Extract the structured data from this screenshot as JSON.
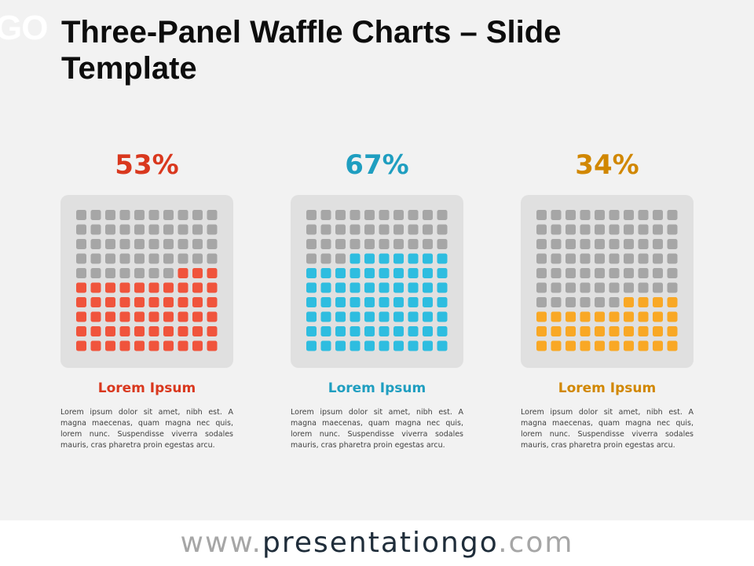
{
  "slide": {
    "logo_fragment": "GO",
    "title": "Three-Panel Waffle Charts – Slide Template"
  },
  "colors": {
    "background": "#f2f2f2",
    "waffle_box": "#e0e0e0",
    "empty_cell": "#a6a6a6",
    "red": "#f0543c",
    "red_text": "#d9381e",
    "blue": "#2ebde0",
    "blue_text": "#1f9ec0",
    "orange": "#f9a825",
    "orange_text": "#d18700"
  },
  "chart_data": [
    {
      "type": "waffle",
      "grid": [
        10,
        10
      ],
      "value": 53,
      "percent_label": "53%",
      "fill_color": "#f0543c",
      "text_color": "#d9381e",
      "label": "Lorem Ipsum",
      "description": "Lorem ipsum dolor sit amet, nibh est. A magna maecenas, quam magna nec quis, lorem nunc. Suspendisse viverra sodales mauris, cras pharetra proin egestas arcu."
    },
    {
      "type": "waffle",
      "grid": [
        10,
        10
      ],
      "value": 67,
      "percent_label": "67%",
      "fill_color": "#2ebde0",
      "text_color": "#1f9ec0",
      "label": "Lorem Ipsum",
      "description": "Lorem ipsum dolor sit amet, nibh est. A magna maecenas, quam magna nec quis, lorem nunc. Suspendisse viverra sodales mauris, cras pharetra proin egestas arcu."
    },
    {
      "type": "waffle",
      "grid": [
        10,
        10
      ],
      "value": 34,
      "percent_label": "34%",
      "fill_color": "#f9a825",
      "text_color": "#d18700",
      "label": "Lorem Ipsum",
      "description": "Lorem ipsum dolor sit amet, nibh est. A magna maecenas, quam magna nec quis, lorem nunc. Suspendisse viverra sodales mauris, cras pharetra proin egestas arcu."
    }
  ],
  "footer": {
    "prefix": "www.",
    "brand": "presentationgo",
    "suffix": ".com"
  }
}
